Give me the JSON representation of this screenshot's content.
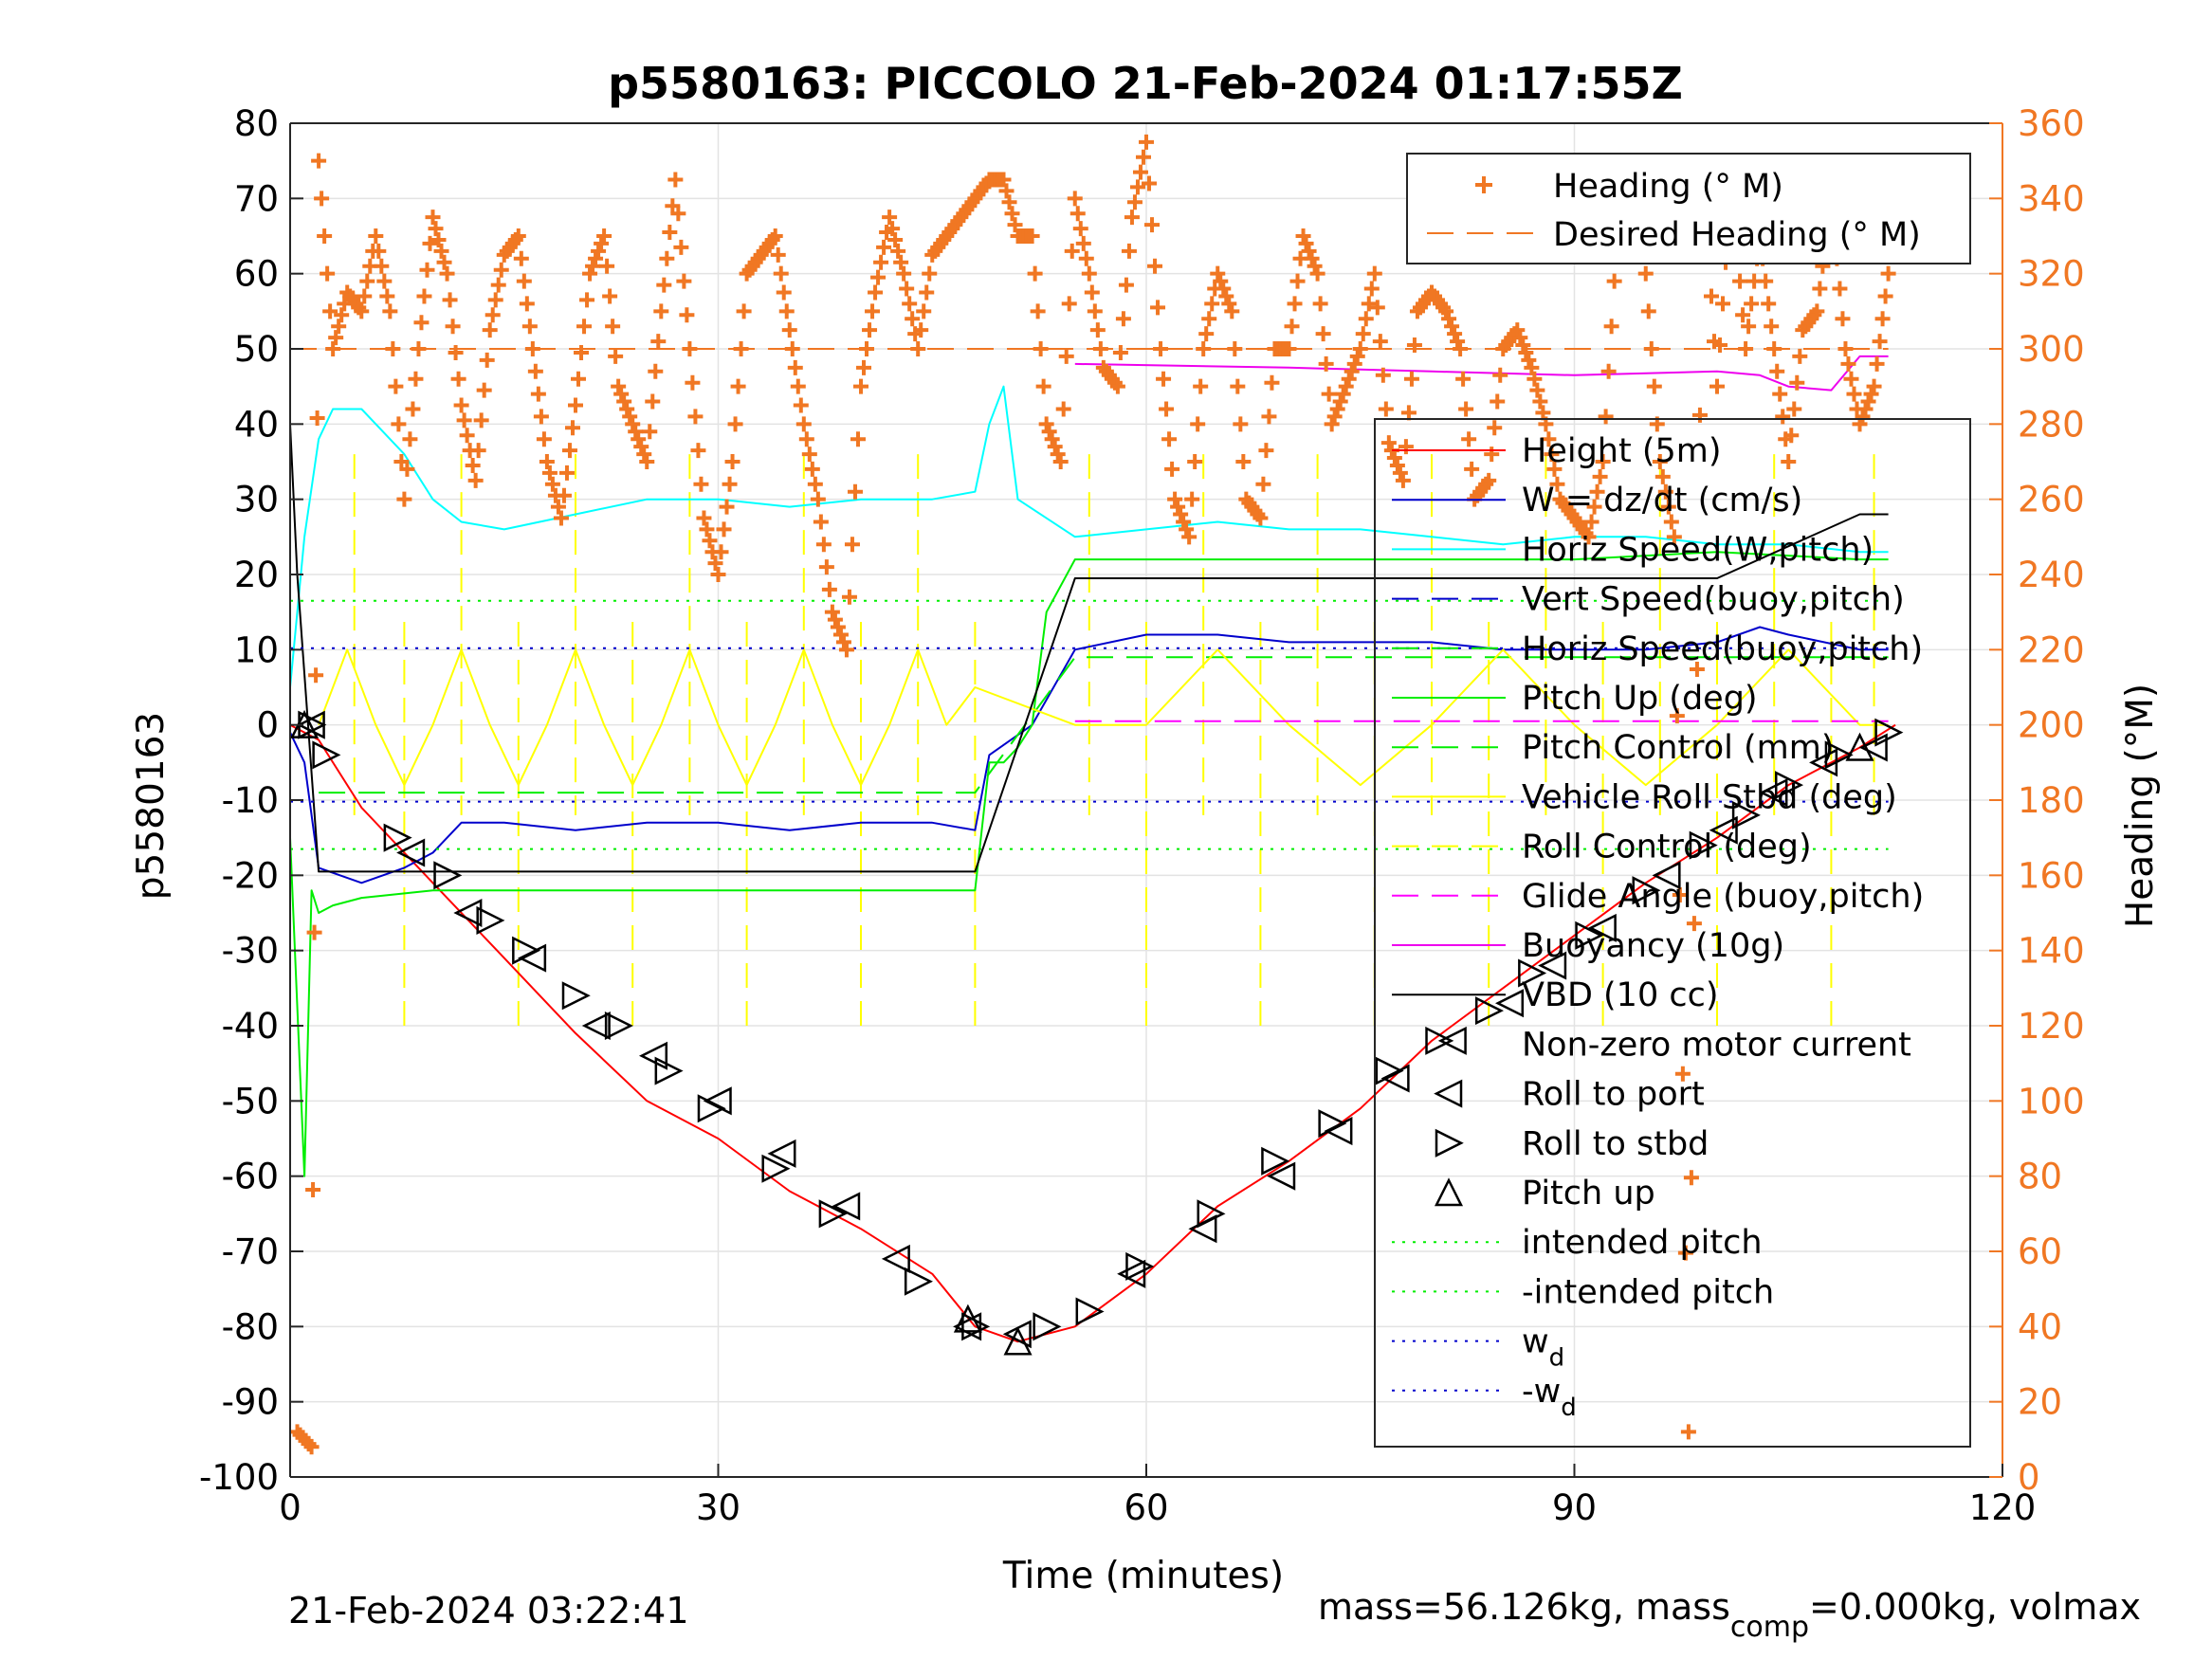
{
  "chart_data": {
    "type": "line",
    "title": "p5580163: PICCOLO 21-Feb-2024 01:17:55Z",
    "xlabel": "Time (minutes)",
    "ylabel": "p5580163",
    "ylabel_right": "Heading (°M)",
    "xlim": [
      0,
      120
    ],
    "ylim": [
      -100,
      80
    ],
    "ylim_right": [
      0,
      360
    ],
    "xticks": [
      0,
      30,
      60,
      90,
      120
    ],
    "yticks": [
      80,
      70,
      60,
      50,
      40,
      30,
      20,
      10,
      0,
      -10,
      -20,
      -30,
      -40,
      -50,
      -60,
      -70,
      -80,
      -90,
      -100
    ],
    "yticks_right": [
      360,
      340,
      320,
      300,
      280,
      260,
      240,
      220,
      200,
      180,
      160,
      140,
      120,
      100,
      80,
      60,
      40,
      20,
      0
    ],
    "grid": true,
    "colors": {
      "height": "#ff0000",
      "w": "#0000cc",
      "horiz_w": "#00ffff",
      "pitch": "#00ee00",
      "roll": "#ffff00",
      "glide": "#ff00ff",
      "buoyancy": "#ee00ee",
      "vbd": "#000000",
      "heading": "#f07723",
      "right_axis": "#f07723"
    },
    "legend_top": {
      "placement": "top-right",
      "entries": [
        "Heading (° M)",
        "Desired Heading (° M)"
      ]
    },
    "legend_main": {
      "placement": "right",
      "entries": [
        "Height (5m)",
        "W = dz/dt (cm/s)",
        "Horiz Speed(W,pitch)",
        "Vert Speed(buoy,pitch)",
        "Horiz Speed(buoy,pitch)",
        "Pitch Up (deg)",
        "Pitch Control (mm)",
        "Vehicle Roll Stbd (deg)",
        "Roll Control (deg)",
        "Glide Angle (buoy,pitch)",
        "Buoyancy (10g)",
        "VBD (10 cc)",
        "Non-zero motor current",
        "Roll to port",
        "Roll to stbd",
        "Pitch up",
        "intended pitch",
        "-intended pitch",
        "w",
        "-w"
      ],
      "subscripts": {
        "w": "d",
        "-w": "d"
      }
    },
    "series": [
      {
        "name": "Height (5m)",
        "x": [
          0,
          2,
          5,
          10,
          15,
          20,
          25,
          30,
          35,
          40,
          45,
          48,
          51,
          55,
          60,
          65,
          70,
          75,
          80,
          85,
          90,
          95,
          100,
          105,
          110,
          112.5
        ],
        "y": [
          0,
          -2,
          -11,
          -21,
          -31,
          -41,
          -50,
          -55,
          -62,
          -67,
          -73,
          -80,
          -82,
          -80,
          -73,
          -64,
          -58,
          -51,
          -42,
          -35,
          -28,
          -21,
          -15,
          -8,
          -3,
          0
        ]
      },
      {
        "name": "W = dz/dt (cm/s)",
        "x": [
          0,
          1,
          2,
          5,
          8,
          10,
          12,
          15,
          20,
          25,
          30,
          35,
          40,
          45,
          48,
          49,
          52,
          55,
          60,
          65,
          70,
          75,
          80,
          85,
          90,
          95,
          100,
          103,
          105,
          110,
          112
        ],
        "y": [
          -1,
          -5,
          -19,
          -21,
          -19,
          -17,
          -13,
          -13,
          -14,
          -13,
          -13,
          -14,
          -13,
          -13,
          -14,
          -4,
          0,
          10,
          12,
          12,
          11,
          11,
          11,
          10,
          10,
          10,
          11,
          13,
          12,
          10,
          10
        ]
      },
      {
        "name": "Horiz Speed(W,pitch)",
        "x": [
          0,
          1,
          2,
          3,
          5,
          8,
          10,
          12,
          15,
          20,
          25,
          30,
          35,
          40,
          45,
          48,
          49,
          50,
          51,
          55,
          60,
          65,
          70,
          75,
          80,
          85,
          90,
          95,
          100,
          105,
          110,
          112
        ],
        "y": [
          5,
          25,
          38,
          42,
          42,
          36,
          30,
          27,
          26,
          28,
          30,
          30,
          29,
          30,
          30,
          31,
          40,
          45,
          30,
          25,
          26,
          27,
          26,
          26,
          25,
          24,
          25,
          25,
          24,
          24,
          23,
          23
        ]
      },
      {
        "name": "Pitch Up (deg)",
        "x": [
          0,
          1,
          1.5,
          2,
          3,
          5,
          10,
          15,
          20,
          25,
          30,
          35,
          40,
          45,
          48,
          49,
          50,
          51,
          52,
          53,
          55,
          60,
          70,
          80,
          90,
          100,
          110,
          112
        ],
        "y": [
          -15,
          -60,
          -22,
          -25,
          -24,
          -23,
          -22,
          -22,
          -22,
          -22,
          -22,
          -22,
          -22,
          -22,
          -22,
          -5,
          -5,
          -3,
          0,
          15,
          22,
          22,
          22,
          22,
          22,
          23,
          22,
          22
        ]
      },
      {
        "name": "Pitch Control (mm)",
        "x": [
          2,
          48,
          55,
          112
        ],
        "y": [
          -9,
          -9,
          9,
          9
        ]
      },
      {
        "name": "Vehicle Roll Stbd (deg)",
        "x": [
          2,
          4,
          6,
          8,
          10,
          12,
          14,
          16,
          18,
          20,
          22,
          24,
          26,
          28,
          30,
          32,
          34,
          36,
          38,
          40,
          42,
          44,
          46,
          48,
          55,
          60,
          65,
          70,
          75,
          80,
          85,
          90,
          95,
          100,
          105,
          110,
          112
        ],
        "y": [
          0,
          10,
          0,
          -8,
          0,
          10,
          0,
          -8,
          0,
          10,
          0,
          -8,
          0,
          10,
          0,
          -8,
          0,
          10,
          0,
          -8,
          0,
          10,
          0,
          5,
          0,
          0,
          10,
          0,
          -8,
          0,
          10,
          0,
          -8,
          0,
          10,
          0,
          0
        ]
      },
      {
        "name": "Glide Angle (buoy,pitch)",
        "x": [
          55,
          112
        ],
        "y": [
          0.5,
          0.5
        ]
      },
      {
        "name": "Buoyancy (10g)",
        "x": [
          55,
          70,
          80,
          90,
          100,
          103,
          105,
          108,
          110,
          112
        ],
        "y": [
          48,
          47.5,
          47,
          46.5,
          47,
          46.5,
          45,
          44.5,
          49,
          49
        ]
      },
      {
        "name": "VBD (10 cc)",
        "x": [
          0,
          0.5,
          2,
          5,
          10,
          20,
          30,
          40,
          48,
          55,
          60,
          70,
          80,
          90,
          100,
          110,
          112
        ],
        "y": [
          40,
          20,
          -19.5,
          -19.5,
          -19.5,
          -19.5,
          -19.5,
          -19.5,
          -19.5,
          19.5,
          19.5,
          19.5,
          19.5,
          19.5,
          19.5,
          28,
          28
        ]
      },
      {
        "name": "intended pitch",
        "x": [
          0,
          112
        ],
        "y": [
          16.5,
          16.5
        ]
      },
      {
        "name": "-intended pitch",
        "x": [
          0,
          112
        ],
        "y": [
          -16.5,
          -16.5
        ]
      },
      {
        "name": "w",
        "x": [
          0,
          112
        ],
        "y": [
          10.2,
          10.2
        ]
      },
      {
        "name": "-w",
        "x": [
          0,
          112
        ],
        "y": [
          -10.2,
          -10.2
        ]
      },
      {
        "name": "Heading (° M)",
        "axis": "right",
        "x": [
          0.5,
          1.5,
          2,
          3,
          4,
          5,
          6,
          7,
          8,
          9,
          10,
          11,
          12,
          13,
          14,
          15,
          16,
          17,
          18,
          19,
          20,
          21,
          22,
          23,
          24,
          25,
          26,
          27,
          28,
          29,
          30,
          31,
          32,
          33,
          34,
          35,
          36,
          37,
          38,
          39,
          40,
          41,
          42,
          43,
          44,
          45,
          46,
          47,
          48,
          49,
          50,
          51,
          52,
          53,
          54,
          55,
          56,
          57,
          58,
          59,
          60,
          61,
          62,
          63,
          64,
          65,
          66,
          67,
          68,
          69,
          70,
          71,
          72,
          73,
          74,
          75,
          76,
          77,
          78,
          79,
          80,
          81,
          82,
          83,
          84,
          85,
          86,
          87,
          88,
          89,
          90,
          91,
          92,
          93,
          94,
          95,
          96,
          97,
          98,
          99,
          100,
          101,
          102,
          103,
          104,
          105,
          106,
          107,
          108,
          109,
          110,
          111,
          112
        ],
        "y": [
          12,
          8,
          350,
          300,
          315,
          310,
          330,
          310,
          260,
          300,
          335,
          320,
          285,
          265,
          305,
          325,
          330,
          300,
          270,
          255,
          285,
          320,
          330,
          290,
          280,
          270,
          310,
          345,
          300,
          255,
          240,
          270,
          320,
          325,
          330,
          305,
          280,
          260,
          230,
          220,
          290,
          315,
          335,
          320,
          300,
          325,
          330,
          335,
          340,
          345,
          345,
          330,
          330,
          280,
          270,
          340,
          320,
          295,
          290,
          335,
          355,
          300,
          260,
          250,
          300,
          320,
          310,
          260,
          255,
          300,
          300,
          330,
          320,
          280,
          290,
          300,
          320,
          275,
          265,
          310,
          315,
          310,
          300,
          260,
          265,
          300,
          305,
          295,
          280,
          260,
          255,
          250,
          270,
          330,
          350,
          320,
          270,
          250,
          12,
          350,
          290,
          345,
          300,
          330,
          300,
          270,
          305,
          310,
          340,
          300,
          280,
          290,
          320
        ]
      },
      {
        "name": "Desired Heading (° M)",
        "axis": "right",
        "x": [
          0,
          112
        ],
        "y": [
          300,
          300
        ]
      }
    ],
    "markers": {
      "roll_to_port": {
        "x": [
          1.5,
          8.5,
          12.5,
          17,
          21.5,
          25.5,
          30,
          34.5,
          39,
          42.5,
          47.5,
          51,
          59,
          64,
          69.5,
          73.5,
          77.5,
          81.5,
          85.5,
          88.5,
          92,
          96.5,
          100.5,
          104,
          107.5,
          111
        ],
        "y": [
          0,
          -17,
          -25,
          -31,
          -40,
          -44,
          -50,
          -57,
          -64,
          -71,
          -80,
          -81,
          -73,
          -67,
          -60,
          -54,
          -47,
          -42,
          -37,
          -32,
          -27,
          -20,
          -14,
          -9,
          -5,
          -3
        ]
      },
      "roll_to_stbd": {
        "x": [
          1.5,
          2.5,
          7.5,
          11,
          14,
          16.5,
          20,
          23,
          26.5,
          29.5,
          34,
          38,
          44,
          48,
          53,
          56,
          59.5,
          64.5,
          69,
          73,
          77,
          80.5,
          84,
          87,
          91,
          95,
          99,
          102,
          105,
          108.5,
          112
        ],
        "y": [
          0,
          -4,
          -15,
          -20,
          -26,
          -30,
          -36,
          -40,
          -46,
          -51,
          -59,
          -65,
          -74,
          -80,
          -80,
          -78,
          -72,
          -65,
          -58,
          -53,
          -46,
          -42,
          -38,
          -33,
          -28,
          -22,
          -16,
          -12,
          -8,
          -4,
          -1
        ]
      },
      "pitch_up": {
        "x": [
          1,
          47.5,
          51,
          110
        ],
        "y": [
          0,
          -79,
          -82,
          -3
        ]
      }
    },
    "footer_left": "21-Feb-2024 03:22:41",
    "footer_right_pre": "mass=56.126kg, mass",
    "footer_right_sub": "comp",
    "footer_right_post": "=0.000kg, volmax"
  }
}
